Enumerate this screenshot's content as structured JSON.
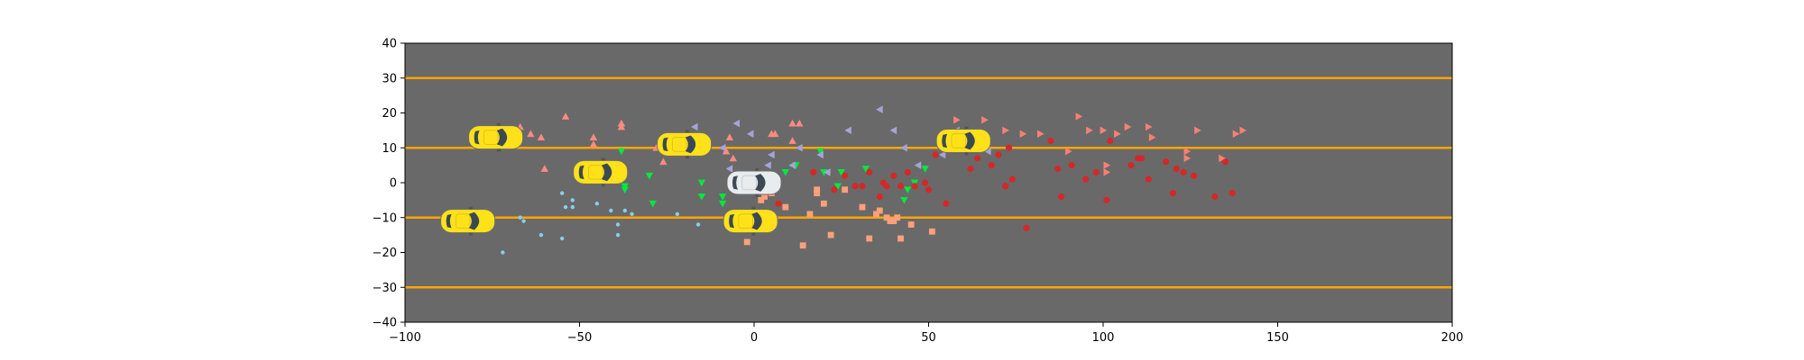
{
  "chart_data": {
    "type": "scatter",
    "title": "",
    "xlabel": "",
    "ylabel": "",
    "xlim": [
      -100,
      200
    ],
    "ylim": [
      -40,
      40
    ],
    "xticks": [
      -100,
      -50,
      0,
      50,
      100,
      150,
      200
    ],
    "yticks": [
      -40,
      -30,
      -20,
      -10,
      0,
      10,
      20,
      30,
      40
    ],
    "xtick_labels": [
      "−100",
      "−50",
      "0",
      "50",
      "100",
      "150",
      "200"
    ],
    "ytick_labels": [
      "−40",
      "−30",
      "−20",
      "−10",
      "0",
      "10",
      "20",
      "30",
      "40"
    ],
    "grid": false,
    "legend": "none",
    "road": {
      "background_color": "#696969",
      "lane_line_color": "#ffa500",
      "lane_lines_y": [
        30,
        10,
        -10,
        -30
      ]
    },
    "vehicles": [
      {
        "kind": "ego",
        "color": "#e8ecef",
        "x": 0,
        "y": 0
      },
      {
        "kind": "other",
        "color": "#ffe119",
        "x": -74,
        "y": 13
      },
      {
        "kind": "other",
        "color": "#ffe119",
        "x": -44,
        "y": 3
      },
      {
        "kind": "other",
        "color": "#ffe119",
        "x": -20,
        "y": 11
      },
      {
        "kind": "other",
        "color": "#ffe119",
        "x": -82,
        "y": -11
      },
      {
        "kind": "other",
        "color": "#ffe119",
        "x": -1,
        "y": -11
      },
      {
        "kind": "other",
        "color": "#ffe119",
        "x": 60,
        "y": 12
      }
    ],
    "series": [
      {
        "marker": "triangle-up",
        "color": "#ff8a80",
        "points": [
          [
            -67,
            16
          ],
          [
            -64,
            14
          ],
          [
            -61,
            13
          ],
          [
            -54,
            19
          ],
          [
            -46,
            13
          ],
          [
            -46,
            11
          ],
          [
            -38,
            17
          ],
          [
            -38,
            16
          ],
          [
            -60,
            4
          ],
          [
            -28,
            10
          ],
          [
            -26,
            6
          ],
          [
            -7,
            13
          ],
          [
            -6,
            7
          ],
          [
            -8,
            9
          ],
          [
            6,
            14
          ],
          [
            5,
            14
          ],
          [
            11,
            12
          ],
          [
            11,
            17
          ],
          [
            13,
            17
          ]
        ]
      },
      {
        "marker": "triangle-down",
        "color": "#00e83f",
        "points": [
          [
            -38,
            9
          ],
          [
            -37,
            -1
          ],
          [
            -37,
            -2
          ],
          [
            -30,
            2
          ],
          [
            -29,
            -6
          ],
          [
            -15,
            0
          ],
          [
            -15,
            -4
          ],
          [
            -9,
            -4
          ],
          [
            -9,
            -6
          ],
          [
            9,
            3
          ],
          [
            12,
            5
          ],
          [
            19,
            9
          ],
          [
            20,
            3
          ],
          [
            24,
            -1
          ],
          [
            25,
            3
          ],
          [
            32,
            4
          ],
          [
            43,
            -5
          ],
          [
            44,
            -2
          ],
          [
            46,
            0
          ],
          [
            49,
            4
          ]
        ]
      },
      {
        "marker": "triangle-left",
        "color": "#a4a4d8",
        "points": [
          [
            -17,
            16
          ],
          [
            -9,
            10
          ],
          [
            -7,
            4
          ],
          [
            -5,
            17
          ],
          [
            -1,
            14
          ],
          [
            4,
            5
          ],
          [
            5,
            8
          ],
          [
            11,
            5
          ],
          [
            13,
            10
          ],
          [
            19,
            8
          ],
          [
            21,
            3
          ],
          [
            27,
            15
          ],
          [
            36,
            21
          ],
          [
            40,
            15
          ],
          [
            43,
            10
          ],
          [
            47,
            5
          ],
          [
            54,
            8
          ],
          [
            58,
            15
          ],
          [
            64,
            11
          ],
          [
            67,
            9
          ]
        ]
      },
      {
        "marker": "square",
        "color": "#ffa07a",
        "points": [
          [
            -2,
            -17
          ],
          [
            2,
            -5
          ],
          [
            3,
            -4
          ],
          [
            5,
            -3
          ],
          [
            9,
            -7
          ],
          [
            16,
            -9
          ],
          [
            18,
            -2
          ],
          [
            18,
            -3
          ],
          [
            20,
            -6
          ],
          [
            22,
            -15
          ],
          [
            26,
            -2
          ],
          [
            31,
            -7
          ],
          [
            33,
            -16
          ],
          [
            35,
            -9
          ],
          [
            36,
            -8
          ],
          [
            38,
            -10
          ],
          [
            39,
            -11
          ],
          [
            40,
            -11
          ],
          [
            41,
            -10
          ],
          [
            42,
            -16
          ],
          [
            45,
            -12
          ],
          [
            51,
            -14
          ],
          [
            14,
            -18
          ]
        ]
      },
      {
        "marker": "circle",
        "color": "#d62728",
        "points": [
          [
            5,
            -9
          ],
          [
            7,
            -6
          ],
          [
            17,
            3
          ],
          [
            23,
            -2
          ],
          [
            26,
            2
          ],
          [
            29,
            -1
          ],
          [
            31,
            -1
          ],
          [
            33,
            3
          ],
          [
            36,
            -4
          ],
          [
            37,
            0
          ],
          [
            38,
            -1
          ],
          [
            40,
            2
          ],
          [
            42,
            -1
          ],
          [
            44,
            3
          ],
          [
            46,
            -1
          ],
          [
            49,
            0
          ],
          [
            50,
            -2
          ],
          [
            52,
            8
          ],
          [
            55,
            -6
          ],
          [
            62,
            4
          ],
          [
            64,
            7
          ],
          [
            68,
            5
          ],
          [
            70,
            8
          ],
          [
            72,
            -1
          ],
          [
            73,
            10
          ],
          [
            74,
            1
          ],
          [
            78,
            -13
          ],
          [
            85,
            12
          ],
          [
            87,
            4
          ],
          [
            88,
            -4
          ],
          [
            91,
            5
          ],
          [
            95,
            1
          ],
          [
            98,
            3
          ],
          [
            101,
            -5
          ],
          [
            102,
            12
          ],
          [
            108,
            5
          ],
          [
            110,
            7
          ],
          [
            111,
            7
          ],
          [
            113,
            1
          ],
          [
            118,
            6
          ],
          [
            120,
            -3
          ],
          [
            121,
            4
          ],
          [
            123,
            3
          ],
          [
            126,
            2
          ],
          [
            132,
            -4
          ],
          [
            135,
            6
          ],
          [
            137,
            -3
          ]
        ]
      },
      {
        "marker": "triangle-right",
        "color": "#fa8072",
        "points": [
          [
            58,
            18
          ],
          [
            66,
            18
          ],
          [
            72,
            15
          ],
          [
            77,
            14
          ],
          [
            82,
            14
          ],
          [
            90,
            9
          ],
          [
            93,
            19
          ],
          [
            96,
            15
          ],
          [
            100,
            15
          ],
          [
            101,
            5
          ],
          [
            101,
            3
          ],
          [
            104,
            14
          ],
          [
            107,
            16
          ],
          [
            113,
            16
          ],
          [
            114,
            13
          ],
          [
            124,
            7
          ],
          [
            124,
            9
          ],
          [
            127,
            15
          ],
          [
            134,
            7
          ],
          [
            138,
            14
          ],
          [
            140,
            15
          ]
        ]
      },
      {
        "marker": "dot",
        "color": "#87ceeb",
        "points": [
          [
            -72,
            -20
          ],
          [
            -67,
            -10
          ],
          [
            -66,
            -11
          ],
          [
            -61,
            -15
          ],
          [
            -55,
            -3
          ],
          [
            -55,
            -16
          ],
          [
            -54,
            -7
          ],
          [
            -52,
            -7
          ],
          [
            -52,
            -5
          ],
          [
            -45,
            -6
          ],
          [
            -41,
            -8
          ],
          [
            -39,
            -12
          ],
          [
            -39,
            -15
          ],
          [
            -37,
            -8
          ],
          [
            -35,
            -9
          ],
          [
            -22,
            -9
          ],
          [
            -16,
            -12
          ]
        ]
      }
    ]
  }
}
